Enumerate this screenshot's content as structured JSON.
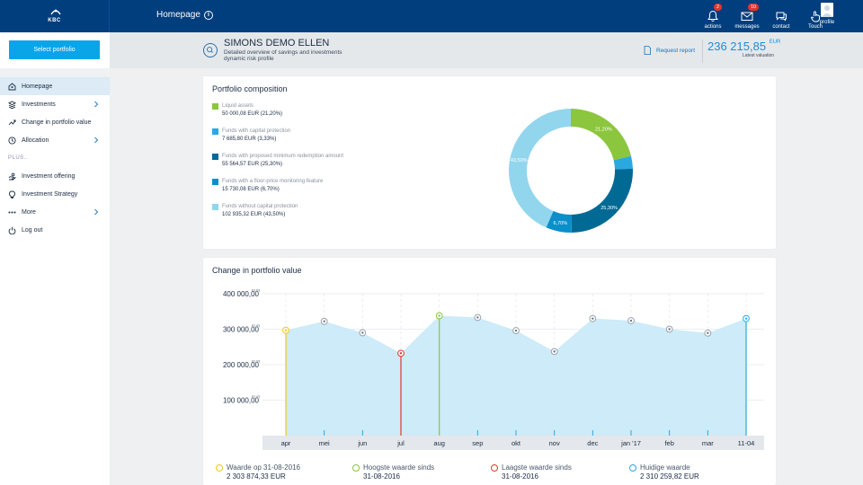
{
  "topbar": {
    "logo": "KBC",
    "title": "Homepage",
    "info": "i",
    "nav": [
      {
        "label": "actions",
        "badge": "2",
        "icon": "bell-icon"
      },
      {
        "label": "messages",
        "badge": "10",
        "icon": "envelope-icon"
      },
      {
        "label": "contact",
        "badge": "",
        "icon": "chat-icon"
      },
      {
        "label": "Touch",
        "badge": "",
        "icon": "touch-icon"
      }
    ],
    "profile_label": "profile"
  },
  "sidebar": {
    "select_label": "Select portfolio",
    "items": [
      {
        "label": "Homepage",
        "icon": "home-icon",
        "chevron": false,
        "active": true
      },
      {
        "label": "Investments",
        "icon": "stack-icon",
        "chevron": true,
        "active": false
      },
      {
        "label": "Change in portfolio value",
        "icon": "trend-icon",
        "chevron": false,
        "active": false
      },
      {
        "label": "Allocation",
        "icon": "clock-icon",
        "chevron": true,
        "active": false
      }
    ],
    "plus_label": "PLUS..",
    "plus_items": [
      {
        "label": "Investment offering",
        "icon": "offer-icon",
        "chevron": false
      },
      {
        "label": "Investment Strategy",
        "icon": "bulb-icon",
        "chevron": false
      },
      {
        "label": "More",
        "icon": "dots-icon",
        "chevron": true
      },
      {
        "label": "Log out",
        "icon": "power-icon",
        "chevron": false
      }
    ]
  },
  "header": {
    "client_name": "SIMONS DEMO ELLEN",
    "sub1": "Detailed overview of savings and investments",
    "sub2": "dynamic risk profile",
    "request_report": "Request report",
    "valuation": "236 215,85",
    "currency": "EUR",
    "valuation_label": "Latest valuation"
  },
  "composition": {
    "title": "Portfolio composition",
    "legend": [
      {
        "name": "Liquid assets",
        "value": "50 000,08 EUR  (21,20%)",
        "color": "#8cc63e"
      },
      {
        "name": "Funds with capital protection",
        "value": "7 685,80 EUR  (3,33%)",
        "color": "#2aa9e0"
      },
      {
        "name": "Funds with proposed minimum redemption amount",
        "value": "55 564,57 EUR  (25,30%)",
        "color": "#006a95"
      },
      {
        "name": "Funds with a floor-price monitoring feature",
        "value": "15 730,08 EUR  (6,70%)",
        "color": "#0a8fca"
      },
      {
        "name": "Funds without capital protection",
        "value": "102 935,32 EUR  (43,50%)",
        "color": "#92d6ee"
      }
    ]
  },
  "chart_data": [
    {
      "type": "pie",
      "categories": [
        "Liquid assets",
        "Funds with capital protection",
        "Funds with proposed minimum redemption amount",
        "Funds with a floor-price monitoring feature",
        "Funds without capital protection"
      ],
      "values": [
        21.2,
        3.33,
        25.3,
        6.7,
        43.5
      ],
      "labels": [
        "21,20%",
        "",
        "25,30%",
        "6,70%",
        "43,50%"
      ],
      "colors": [
        "#8cc63e",
        "#2aa9e0",
        "#006a95",
        "#0a8fca",
        "#92d6ee"
      ]
    },
    {
      "type": "area",
      "title": "Change in portfolio value",
      "x": [
        "apr",
        "mei",
        "jun",
        "jul",
        "aug",
        "sep",
        "okt",
        "nov",
        "dec",
        "jan '17",
        "feb",
        "mar",
        "11-04"
      ],
      "values": [
        297000,
        322000,
        290000,
        232000,
        338000,
        333000,
        296000,
        237000,
        330000,
        324000,
        300000,
        289000,
        330000
      ],
      "markers": [
        "yellow",
        "gray",
        "gray",
        "red",
        "green",
        "gray",
        "gray",
        "gray",
        "gray",
        "gray",
        "gray",
        "gray",
        "blue"
      ],
      "yticks": [
        "100 000,00",
        "200 000,00",
        "300 000,00",
        "400 000,00"
      ],
      "ytick_values": [
        100000,
        200000,
        300000,
        400000
      ],
      "yunit": "EUR",
      "ylim": [
        0,
        400000
      ],
      "grid": true
    }
  ],
  "value": {
    "title": "Change in portfolio value",
    "legend": [
      {
        "l1": "Waarde op 31-08-2016",
        "l2": "2 303 874,33 EUR",
        "color": "#f0c814"
      },
      {
        "l1": "Hoogste waarde sinds",
        "l2": "31-08-2016",
        "color": "#8cc63e"
      },
      {
        "l1": "Laagste waarde sinds",
        "l2": "31-08-2016",
        "color": "#e4352b"
      },
      {
        "l1": "Huidige waarde",
        "l2": "2 310 259,82 EUR",
        "color": "#2aa9e0"
      }
    ]
  }
}
